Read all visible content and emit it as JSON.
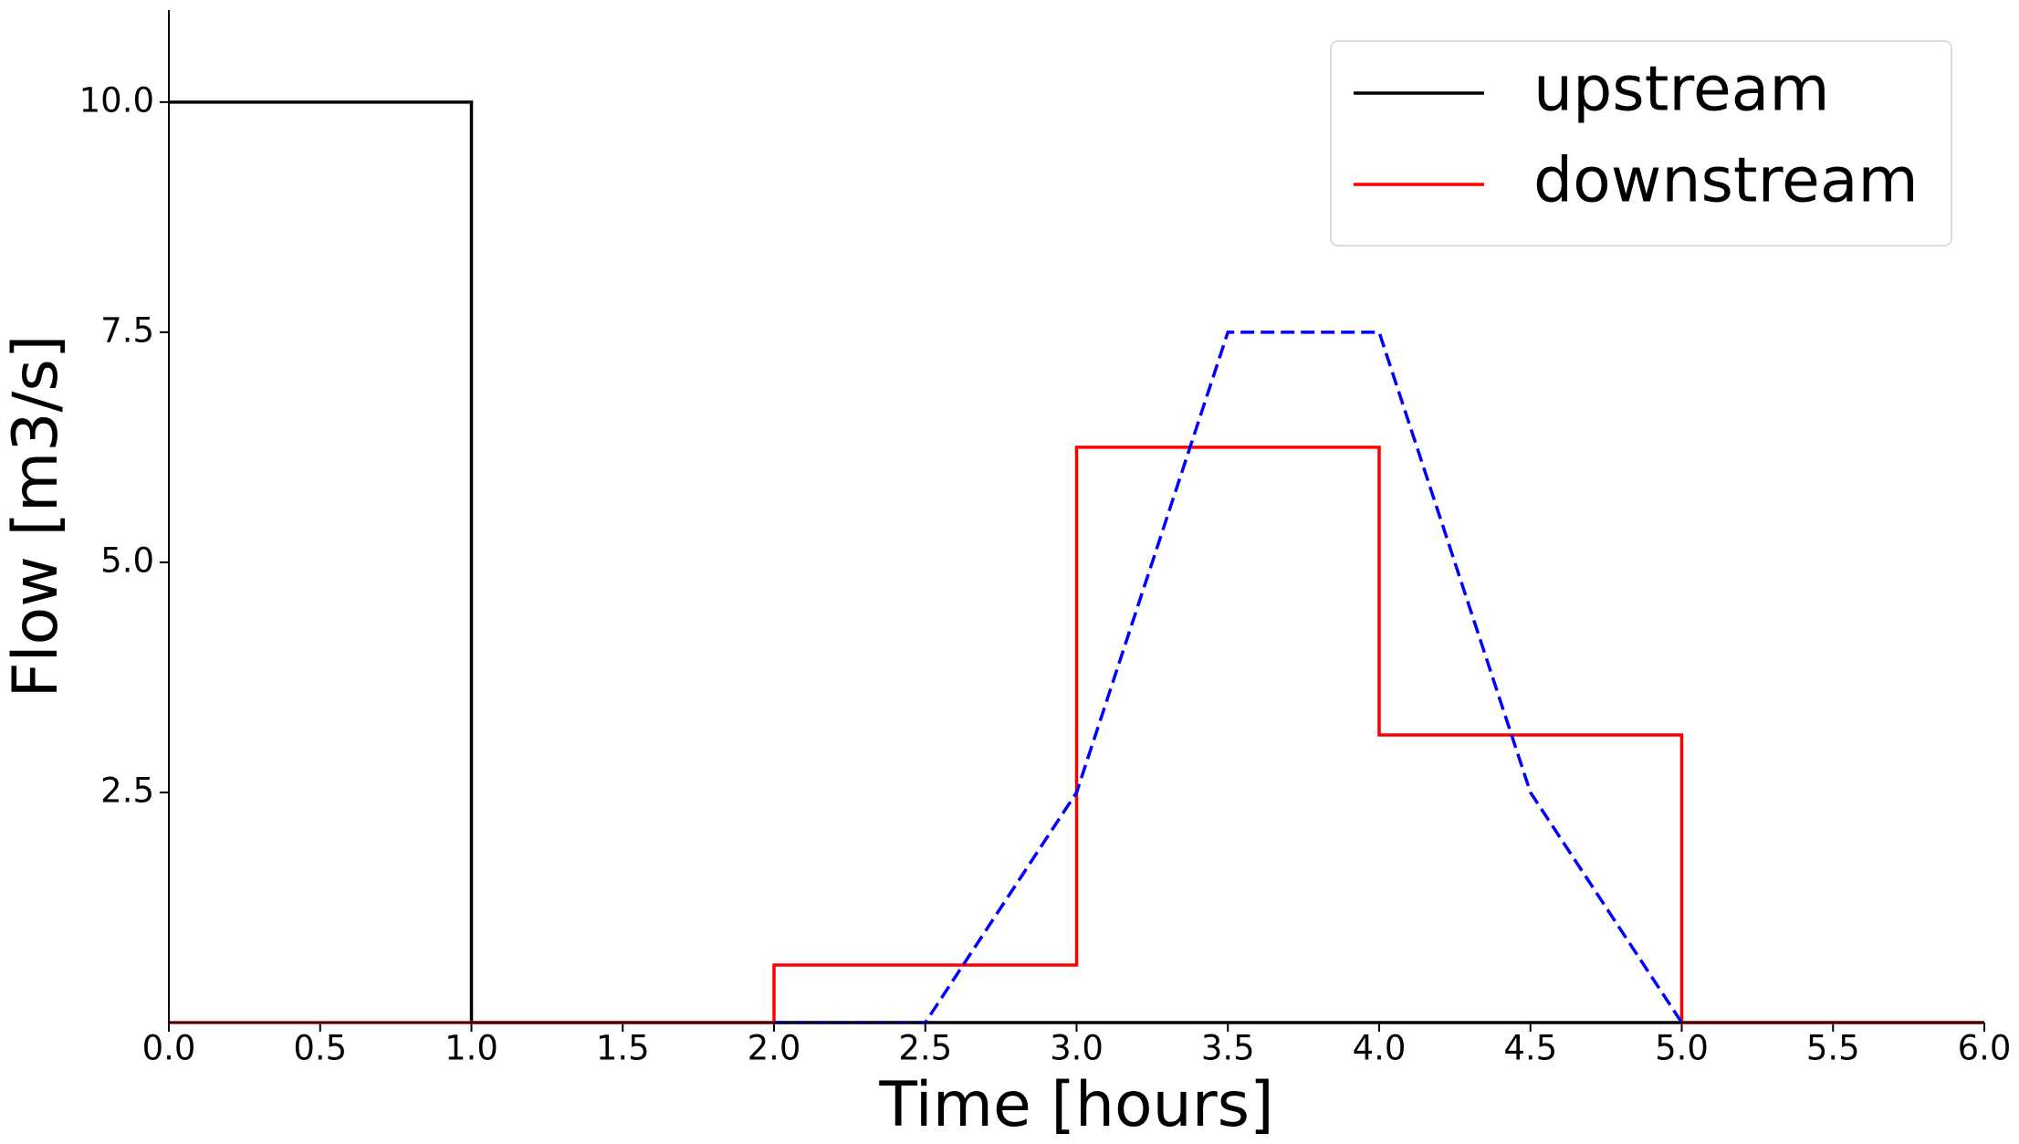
{
  "chart_data": {
    "type": "line",
    "xlabel": "Time [hours]",
    "ylabel": "Flow [m3/s]",
    "xlim": [
      0,
      6
    ],
    "ylim": [
      0,
      11
    ],
    "xticks": [
      {
        "value": 0,
        "label": "0.0"
      },
      0.5,
      {
        "value": 1,
        "label": "1.0"
      },
      1.5,
      {
        "value": 2,
        "label": "2.0"
      },
      2.5,
      {
        "value": 3,
        "label": "3.0"
      },
      3.5,
      {
        "value": 4,
        "label": "4.0"
      },
      4.5,
      {
        "value": 5,
        "label": "5.0"
      },
      5.5,
      {
        "value": 6,
        "label": "6.0"
      }
    ],
    "yticks": [
      2.5,
      {
        "value": 5,
        "label": "5.0"
      },
      7.5,
      {
        "value": 10,
        "label": "10.0"
      }
    ],
    "legend": "upper right",
    "series": [
      {
        "name": "upstream",
        "color": "#000000",
        "style": "solid",
        "x": [
          0,
          1,
          1,
          6
        ],
        "values": [
          10,
          10,
          0,
          0
        ]
      },
      {
        "name": "downstream",
        "color": "#ff0000",
        "style": "solid",
        "x": [
          0,
          2,
          2,
          3,
          3,
          4,
          4,
          5,
          5,
          6
        ],
        "values": [
          0,
          0,
          0.625,
          0.625,
          6.25,
          6.25,
          3.125,
          3.125,
          0,
          0
        ]
      },
      {
        "color": "#0000ff",
        "style": "dashed",
        "x": [
          2,
          2.5,
          3,
          3.5,
          4,
          4.5,
          5
        ],
        "values": [
          0,
          0,
          2.5,
          7.5,
          7.5,
          2.5,
          0
        ]
      }
    ]
  }
}
